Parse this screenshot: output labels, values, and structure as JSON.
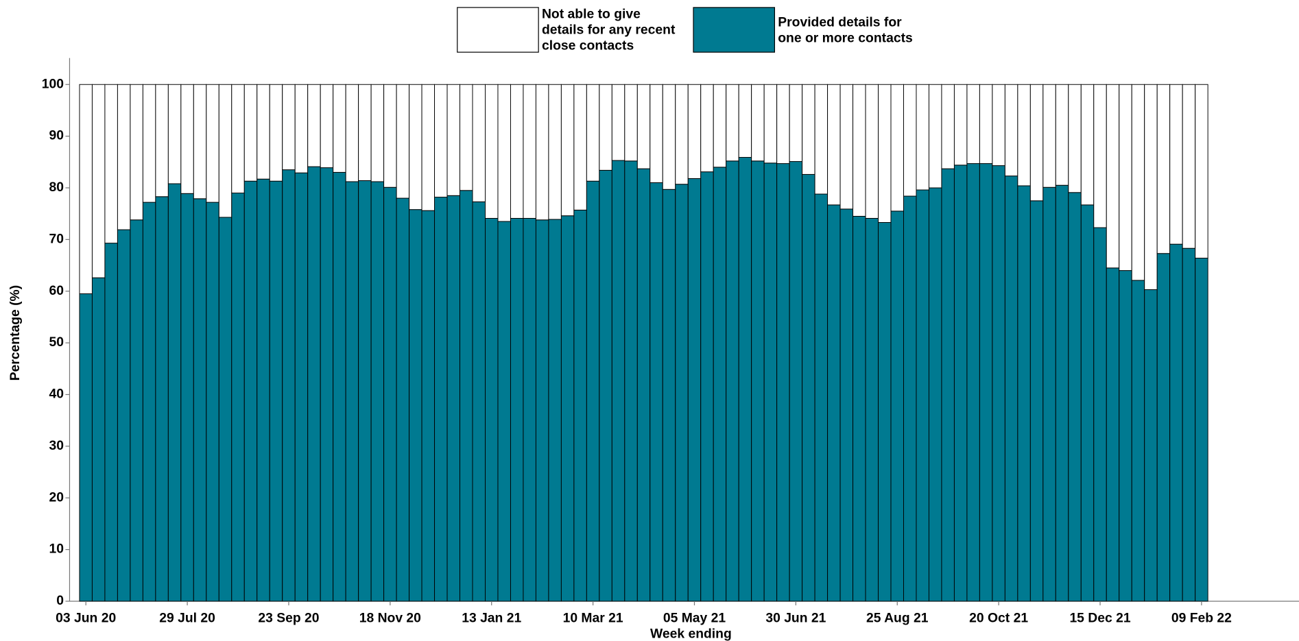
{
  "chart_data": {
    "type": "stacked_bar",
    "x_label": "Week ending",
    "y_label": "Percentage (%)",
    "categories": [
      "03 Jun 20",
      null,
      null,
      null,
      null,
      null,
      null,
      null,
      "29 Jul 20",
      null,
      null,
      null,
      null,
      null,
      null,
      null,
      "23 Sep 20",
      null,
      null,
      null,
      null,
      null,
      null,
      null,
      "18 Nov 20",
      null,
      null,
      null,
      null,
      null,
      null,
      null,
      "13 Jan 21",
      null,
      null,
      null,
      null,
      null,
      null,
      null,
      "10 Mar 21",
      null,
      null,
      null,
      null,
      null,
      null,
      null,
      "05 May 21",
      null,
      null,
      null,
      null,
      null,
      null,
      null,
      "30 Jun 21",
      null,
      null,
      null,
      null,
      null,
      null,
      null,
      "25 Aug 21",
      null,
      null,
      null,
      null,
      null,
      null,
      null,
      "20 Oct 21",
      null,
      null,
      null,
      null,
      null,
      null,
      null,
      "15 Dec 21",
      null,
      null,
      null,
      null,
      null,
      null,
      null,
      "09 Feb 22"
    ],
    "series": [
      {
        "name": "Not able to give\n details for any recent\n close contacts",
        "color": "#ffffff",
        "values": [
          40.5,
          37.4,
          30.7,
          28.1,
          26.2,
          22.8,
          21.7,
          19.2,
          21.1,
          22.1,
          22.8,
          25.7,
          21.0,
          18.7,
          18.3,
          18.7,
          16.5,
          17.1,
          15.9,
          16.1,
          17.0,
          18.8,
          18.6,
          18.8,
          19.9,
          22.0,
          24.2,
          24.4,
          21.8,
          21.5,
          20.5,
          22.7,
          25.9,
          26.5,
          25.9,
          25.9,
          26.2,
          26.1,
          25.4,
          24.3,
          18.7,
          16.6,
          14.7,
          14.8,
          16.3,
          19.0,
          20.3,
          19.3,
          18.2,
          16.9,
          16.0,
          14.8,
          14.1,
          14.8,
          15.2,
          15.3,
          14.9,
          17.4,
          21.2,
          23.3,
          24.1,
          25.5,
          25.9,
          26.7,
          24.5,
          21.6,
          20.4,
          20.0,
          16.3,
          15.6,
          15.3,
          15.3,
          15.7,
          17.7,
          19.6,
          22.5,
          19.9,
          19.5,
          20.9,
          23.3,
          27.7,
          35.5,
          36.0,
          37.9,
          39.7,
          32.7,
          30.9,
          31.7,
          33.6
        ]
      },
      {
        "name": "Provided details for\n one or more contacts",
        "color": "#007a91",
        "values": [
          59.5,
          62.6,
          69.3,
          71.9,
          73.8,
          77.2,
          78.3,
          80.8,
          78.9,
          77.9,
          77.2,
          74.3,
          79.0,
          81.3,
          81.7,
          81.3,
          83.5,
          82.9,
          84.1,
          83.9,
          83.0,
          81.2,
          81.4,
          81.2,
          80.1,
          78.0,
          75.8,
          75.6,
          78.2,
          78.5,
          79.5,
          77.3,
          74.1,
          73.5,
          74.1,
          74.1,
          73.8,
          73.9,
          74.6,
          75.7,
          81.3,
          83.4,
          85.3,
          85.2,
          83.7,
          81.0,
          79.7,
          80.7,
          81.8,
          83.1,
          84.0,
          85.2,
          85.9,
          85.2,
          84.8,
          84.7,
          85.1,
          82.6,
          78.8,
          76.7,
          75.9,
          74.5,
          74.1,
          73.3,
          75.5,
          78.4,
          79.6,
          80.0,
          83.7,
          84.4,
          84.7,
          84.7,
          84.3,
          82.3,
          80.4,
          77.5,
          80.1,
          80.5,
          79.1,
          76.7,
          72.3,
          64.5,
          64.0,
          62.1,
          60.3,
          67.3,
          69.1,
          68.3,
          66.4
        ]
      }
    ],
    "ylim": [
      0,
      100
    ],
    "yticks": [
      0,
      10,
      20,
      30,
      40,
      50,
      60,
      70,
      80,
      90,
      100
    ],
    "grid": false,
    "legend": "top"
  }
}
